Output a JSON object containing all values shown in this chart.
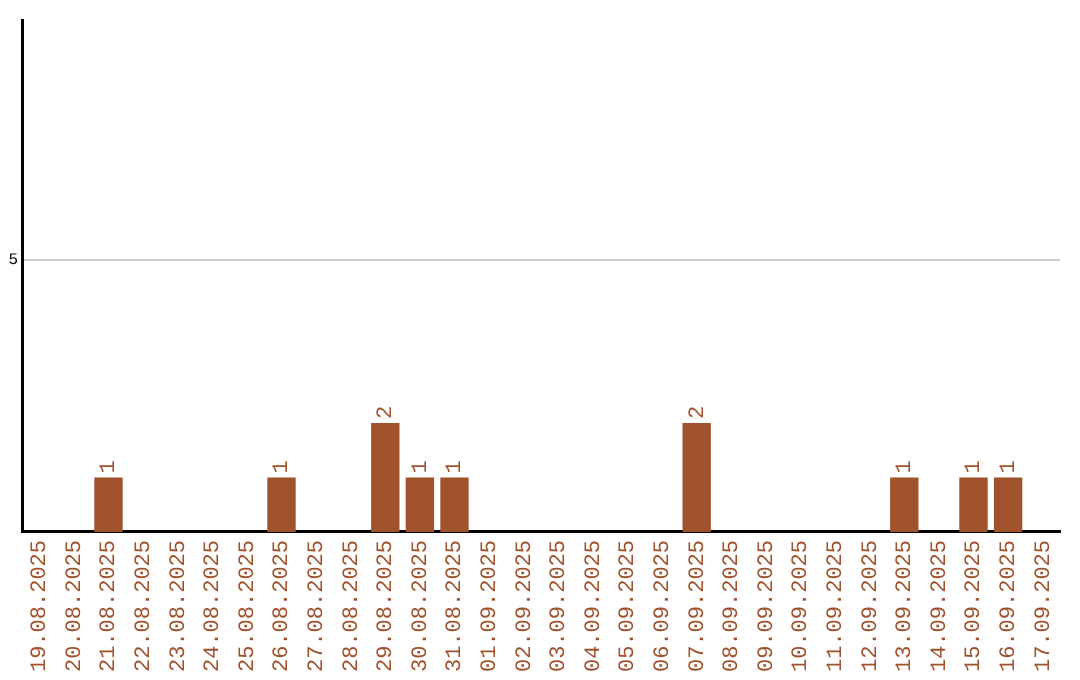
{
  "chart_data": {
    "type": "bar",
    "categories": [
      "19.08.2025",
      "20.08.2025",
      "21.08.2025",
      "22.08.2025",
      "23.08.2025",
      "24.08.2025",
      "25.08.2025",
      "26.08.2025",
      "27.08.2025",
      "28.08.2025",
      "29.08.2025",
      "30.08.2025",
      "31.08.2025",
      "01.09.2025",
      "02.09.2025",
      "03.09.2025",
      "04.09.2025",
      "05.09.2025",
      "06.09.2025",
      "07.09.2025",
      "08.09.2025",
      "09.09.2025",
      "10.09.2025",
      "11.09.2025",
      "12.09.2025",
      "13.09.2025",
      "14.09.2025",
      "15.09.2025",
      "16.09.2025",
      "17.09.2025"
    ],
    "values": [
      0,
      0,
      1,
      0,
      0,
      0,
      0,
      1,
      0,
      0,
      2,
      1,
      1,
      0,
      0,
      0,
      0,
      0,
      0,
      2,
      0,
      0,
      0,
      0,
      0,
      1,
      0,
      1,
      1,
      0
    ],
    "value_labels": [
      null,
      null,
      "1",
      null,
      null,
      null,
      null,
      "1",
      null,
      null,
      "2",
      "1",
      "1",
      null,
      null,
      null,
      null,
      null,
      null,
      "2",
      null,
      null,
      null,
      null,
      null,
      "1",
      null,
      "1",
      "1",
      null
    ],
    "color": "#a0522d",
    "ylim": [
      0,
      9.4
    ],
    "yticks": [
      5
    ],
    "grid": "y"
  }
}
